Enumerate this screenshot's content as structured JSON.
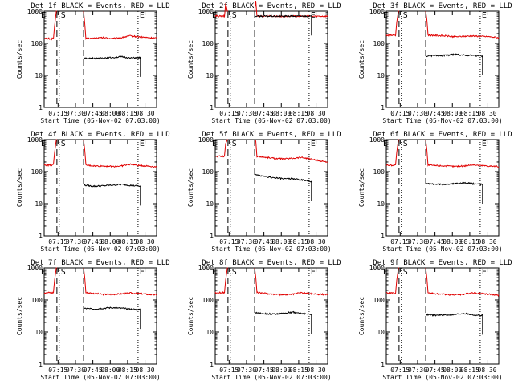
{
  "colors": {
    "events": "#000000",
    "lld": "#e00000",
    "background": "#ffffff",
    "axes": "#000000"
  },
  "chart_data": [
    {
      "type": "line",
      "title": "Det 1f BLACK = Events, RED = LLD",
      "xlabel": "Start Time (05-Nov-02 07:03:00)",
      "ylabel": "Counts/sec",
      "xticks": [
        "07:15",
        "07:30",
        "07:45",
        "08:00",
        "08:15",
        "08:30"
      ],
      "yticks": [
        "1",
        "10",
        "100",
        "1000"
      ],
      "yscale": "log",
      "ylim": [
        1,
        1000
      ],
      "xlim": [
        "07:03",
        "08:40"
      ],
      "markers": [
        {
          "label": "S",
          "time": "07:16",
          "style": "dotted"
        },
        {
          "label": "E",
          "time": "08:24",
          "style": "dotted"
        }
      ],
      "gap": {
        "start": "07:14",
        "end": "07:37"
      },
      "series": [
        {
          "name": "Events",
          "color": "#000000",
          "start": "07:37",
          "end": "08:26",
          "values": [
            35,
            34,
            35,
            36,
            38,
            35,
            36
          ]
        },
        {
          "name": "LLD",
          "color": "#e00000",
          "values": [
            140,
            145,
            150,
            140,
            150,
            170,
            160,
            150,
            145
          ]
        }
      ]
    },
    {
      "type": "line",
      "title": "Det 2f BLACK = Events, RED = LLD",
      "xlabel": "Start Time (05-Nov-02 07:03:00)",
      "ylabel": "Counts/sec",
      "xticks": [
        "07:15",
        "07:30",
        "07:45",
        "08:00",
        "08:15",
        "08:30"
      ],
      "yticks": [
        "1",
        "10",
        "100",
        "1000"
      ],
      "yscale": "log",
      "ylim": [
        1,
        1000
      ],
      "xlim": [
        "07:03",
        "08:40"
      ],
      "markers": [
        {
          "label": "S",
          "time": "07:16",
          "style": "dotted"
        },
        {
          "label": "E",
          "time": "08:24",
          "style": "dotted"
        }
      ],
      "gap": {
        "start": "07:14",
        "end": "07:37"
      },
      "series": [
        {
          "name": "Events",
          "color": "#000000",
          "start": "07:37",
          "end": "08:26",
          "values": [
            700,
            700,
            700,
            700,
            700,
            700,
            700
          ]
        },
        {
          "name": "LLD",
          "color": "#e00000",
          "values": [
            700,
            710,
            700,
            690,
            700,
            700,
            700,
            700,
            700
          ]
        }
      ]
    },
    {
      "type": "line",
      "title": "Det 3f BLACK = Events, RED = LLD",
      "xlabel": "Start Time (05-Nov-02 07:03:00)",
      "ylabel": "Counts/sec",
      "xticks": [
        "07:15",
        "07:30",
        "07:45",
        "08:00",
        "08:15",
        "08:30"
      ],
      "yticks": [
        "1",
        "10",
        "100",
        "1000"
      ],
      "yscale": "log",
      "ylim": [
        1,
        1000
      ],
      "xlim": [
        "07:03",
        "08:40"
      ],
      "markers": [
        {
          "label": "S",
          "time": "07:16",
          "style": "dotted"
        },
        {
          "label": "E",
          "time": "08:24",
          "style": "dotted"
        }
      ],
      "gap": {
        "start": "07:14",
        "end": "07:37"
      },
      "series": [
        {
          "name": "Events",
          "color": "#000000",
          "start": "07:37",
          "end": "08:26",
          "values": [
            40,
            42,
            42,
            45,
            43,
            42,
            40
          ]
        },
        {
          "name": "LLD",
          "color": "#e00000",
          "values": [
            180,
            175,
            170,
            160,
            165,
            170,
            165,
            160,
            150
          ]
        }
      ]
    },
    {
      "type": "line",
      "title": "Det 4f BLACK = Events, RED = LLD",
      "xlabel": "Start Time (05-Nov-02 07:03:00)",
      "ylabel": "Counts/sec",
      "xticks": [
        "07:15",
        "07:30",
        "07:45",
        "08:00",
        "08:15",
        "08:30"
      ],
      "yticks": [
        "1",
        "10",
        "100",
        "1000"
      ],
      "yscale": "log",
      "ylim": [
        1,
        1000
      ],
      "xlim": [
        "07:03",
        "08:40"
      ],
      "markers": [
        {
          "label": "S",
          "time": "07:16",
          "style": "dotted"
        },
        {
          "label": "E",
          "time": "08:24",
          "style": "dotted"
        }
      ],
      "gap": {
        "start": "07:14",
        "end": "07:37"
      },
      "series": [
        {
          "name": "Events",
          "color": "#000000",
          "start": "07:37",
          "end": "08:26",
          "values": [
            38,
            35,
            36,
            38,
            40,
            37,
            35
          ]
        },
        {
          "name": "LLD",
          "color": "#e00000",
          "values": [
            160,
            150,
            150,
            145,
            150,
            170,
            155,
            150,
            140
          ]
        }
      ]
    },
    {
      "type": "line",
      "title": "Det 5f BLACK = Events, RED = LLD",
      "xlabel": "Start Time (05-Nov-02 07:03:00)",
      "ylabel": "Counts/sec",
      "xticks": [
        "07:15",
        "07:30",
        "07:45",
        "08:00",
        "08:15",
        "08:30"
      ],
      "yticks": [
        "1",
        "10",
        "100",
        "1000"
      ],
      "yscale": "log",
      "ylim": [
        1,
        1000
      ],
      "xlim": [
        "07:03",
        "08:40"
      ],
      "markers": [
        {
          "label": "S",
          "time": "07:16",
          "style": "dotted"
        },
        {
          "label": "E",
          "time": "08:24",
          "style": "dotted"
        }
      ],
      "gap": {
        "start": "07:14",
        "end": "07:37"
      },
      "series": [
        {
          "name": "Events",
          "color": "#000000",
          "start": "07:37",
          "end": "08:26",
          "values": [
            80,
            70,
            65,
            60,
            60,
            55,
            50
          ]
        },
        {
          "name": "LLD",
          "color": "#e00000",
          "values": [
            300,
            280,
            260,
            250,
            260,
            280,
            250,
            220,
            200
          ]
        }
      ]
    },
    {
      "type": "line",
      "title": "Det 6f BLACK = Events, RED = LLD",
      "xlabel": "Start Time (05-Nov-02 07:03:00)",
      "ylabel": "Counts/sec",
      "xticks": [
        "07:15",
        "07:30",
        "07:45",
        "08:00",
        "08:15",
        "08:30"
      ],
      "yticks": [
        "1",
        "10",
        "100",
        "1000"
      ],
      "yscale": "log",
      "ylim": [
        1,
        1000
      ],
      "xlim": [
        "07:03",
        "08:40"
      ],
      "markers": [
        {
          "label": "S",
          "time": "07:16",
          "style": "dotted"
        },
        {
          "label": "E",
          "time": "08:24",
          "style": "dotted"
        }
      ],
      "gap": {
        "start": "07:14",
        "end": "07:37"
      },
      "series": [
        {
          "name": "Events",
          "color": "#000000",
          "start": "07:37",
          "end": "08:26",
          "values": [
            42,
            40,
            40,
            42,
            45,
            42,
            40
          ]
        },
        {
          "name": "LLD",
          "color": "#e00000",
          "values": [
            160,
            155,
            150,
            145,
            150,
            165,
            155,
            150,
            145
          ]
        }
      ]
    },
    {
      "type": "line",
      "title": "Det 7f BLACK = Events, RED = LLD",
      "xlabel": "Start Time (05-Nov-02 07:03:00)",
      "ylabel": "Counts/sec",
      "xticks": [
        "07:15",
        "07:30",
        "07:45",
        "08:00",
        "08:15",
        "08:30"
      ],
      "yticks": [
        "1",
        "10",
        "100",
        "1000"
      ],
      "yscale": "log",
      "ylim": [
        1,
        1000
      ],
      "xlim": [
        "07:03",
        "08:40"
      ],
      "markers": [
        {
          "label": "S",
          "time": "07:16",
          "style": "dotted"
        },
        {
          "label": "E",
          "time": "08:24",
          "style": "dotted"
        }
      ],
      "gap": {
        "start": "07:14",
        "end": "07:37"
      },
      "series": [
        {
          "name": "Events",
          "color": "#000000",
          "start": "07:37",
          "end": "08:26",
          "values": [
            55,
            52,
            55,
            58,
            55,
            52,
            50
          ]
        },
        {
          "name": "LLD",
          "color": "#e00000",
          "values": [
            170,
            160,
            150,
            150,
            155,
            165,
            160,
            150,
            145
          ]
        }
      ]
    },
    {
      "type": "line",
      "title": "Det 8f BLACK = Events, RED = LLD",
      "xlabel": "Start Time (05-Nov-02 07:03:00)",
      "ylabel": "Counts/sec",
      "xticks": [
        "07:15",
        "07:30",
        "07:45",
        "08:00",
        "08:15",
        "08:30"
      ],
      "yticks": [
        "1",
        "10",
        "100",
        "1000"
      ],
      "yscale": "log",
      "ylim": [
        1,
        1000
      ],
      "xlim": [
        "07:03",
        "08:40"
      ],
      "markers": [
        {
          "label": "S",
          "time": "07:16",
          "style": "dotted"
        },
        {
          "label": "E",
          "time": "08:24",
          "style": "dotted"
        }
      ],
      "gap": {
        "start": "07:14",
        "end": "07:37"
      },
      "series": [
        {
          "name": "Events",
          "color": "#000000",
          "start": "07:37",
          "end": "08:26",
          "values": [
            40,
            38,
            36,
            38,
            42,
            38,
            35
          ]
        },
        {
          "name": "LLD",
          "color": "#e00000",
          "values": [
            170,
            160,
            150,
            145,
            150,
            170,
            160,
            150,
            150
          ]
        }
      ]
    },
    {
      "type": "line",
      "title": "Det 9f BLACK = Events, RED = LLD",
      "xlabel": "Start Time (05-Nov-02 07:03:00)",
      "ylabel": "Counts/sec",
      "xticks": [
        "07:15",
        "07:30",
        "07:45",
        "08:00",
        "08:15",
        "08:30"
      ],
      "yticks": [
        "1",
        "10",
        "100",
        "1000"
      ],
      "yscale": "log",
      "ylim": [
        1,
        1000
      ],
      "xlim": [
        "07:03",
        "08:40"
      ],
      "markers": [
        {
          "label": "S",
          "time": "07:16",
          "style": "dotted"
        },
        {
          "label": "E",
          "time": "08:24",
          "style": "dotted"
        }
      ],
      "gap": {
        "start": "07:14",
        "end": "07:37"
      },
      "series": [
        {
          "name": "Events",
          "color": "#000000",
          "start": "07:37",
          "end": "08:26",
          "values": [
            35,
            33,
            34,
            35,
            38,
            34,
            33
          ]
        },
        {
          "name": "LLD",
          "color": "#e00000",
          "values": [
            165,
            155,
            150,
            145,
            150,
            170,
            160,
            150,
            140
          ]
        }
      ]
    }
  ]
}
